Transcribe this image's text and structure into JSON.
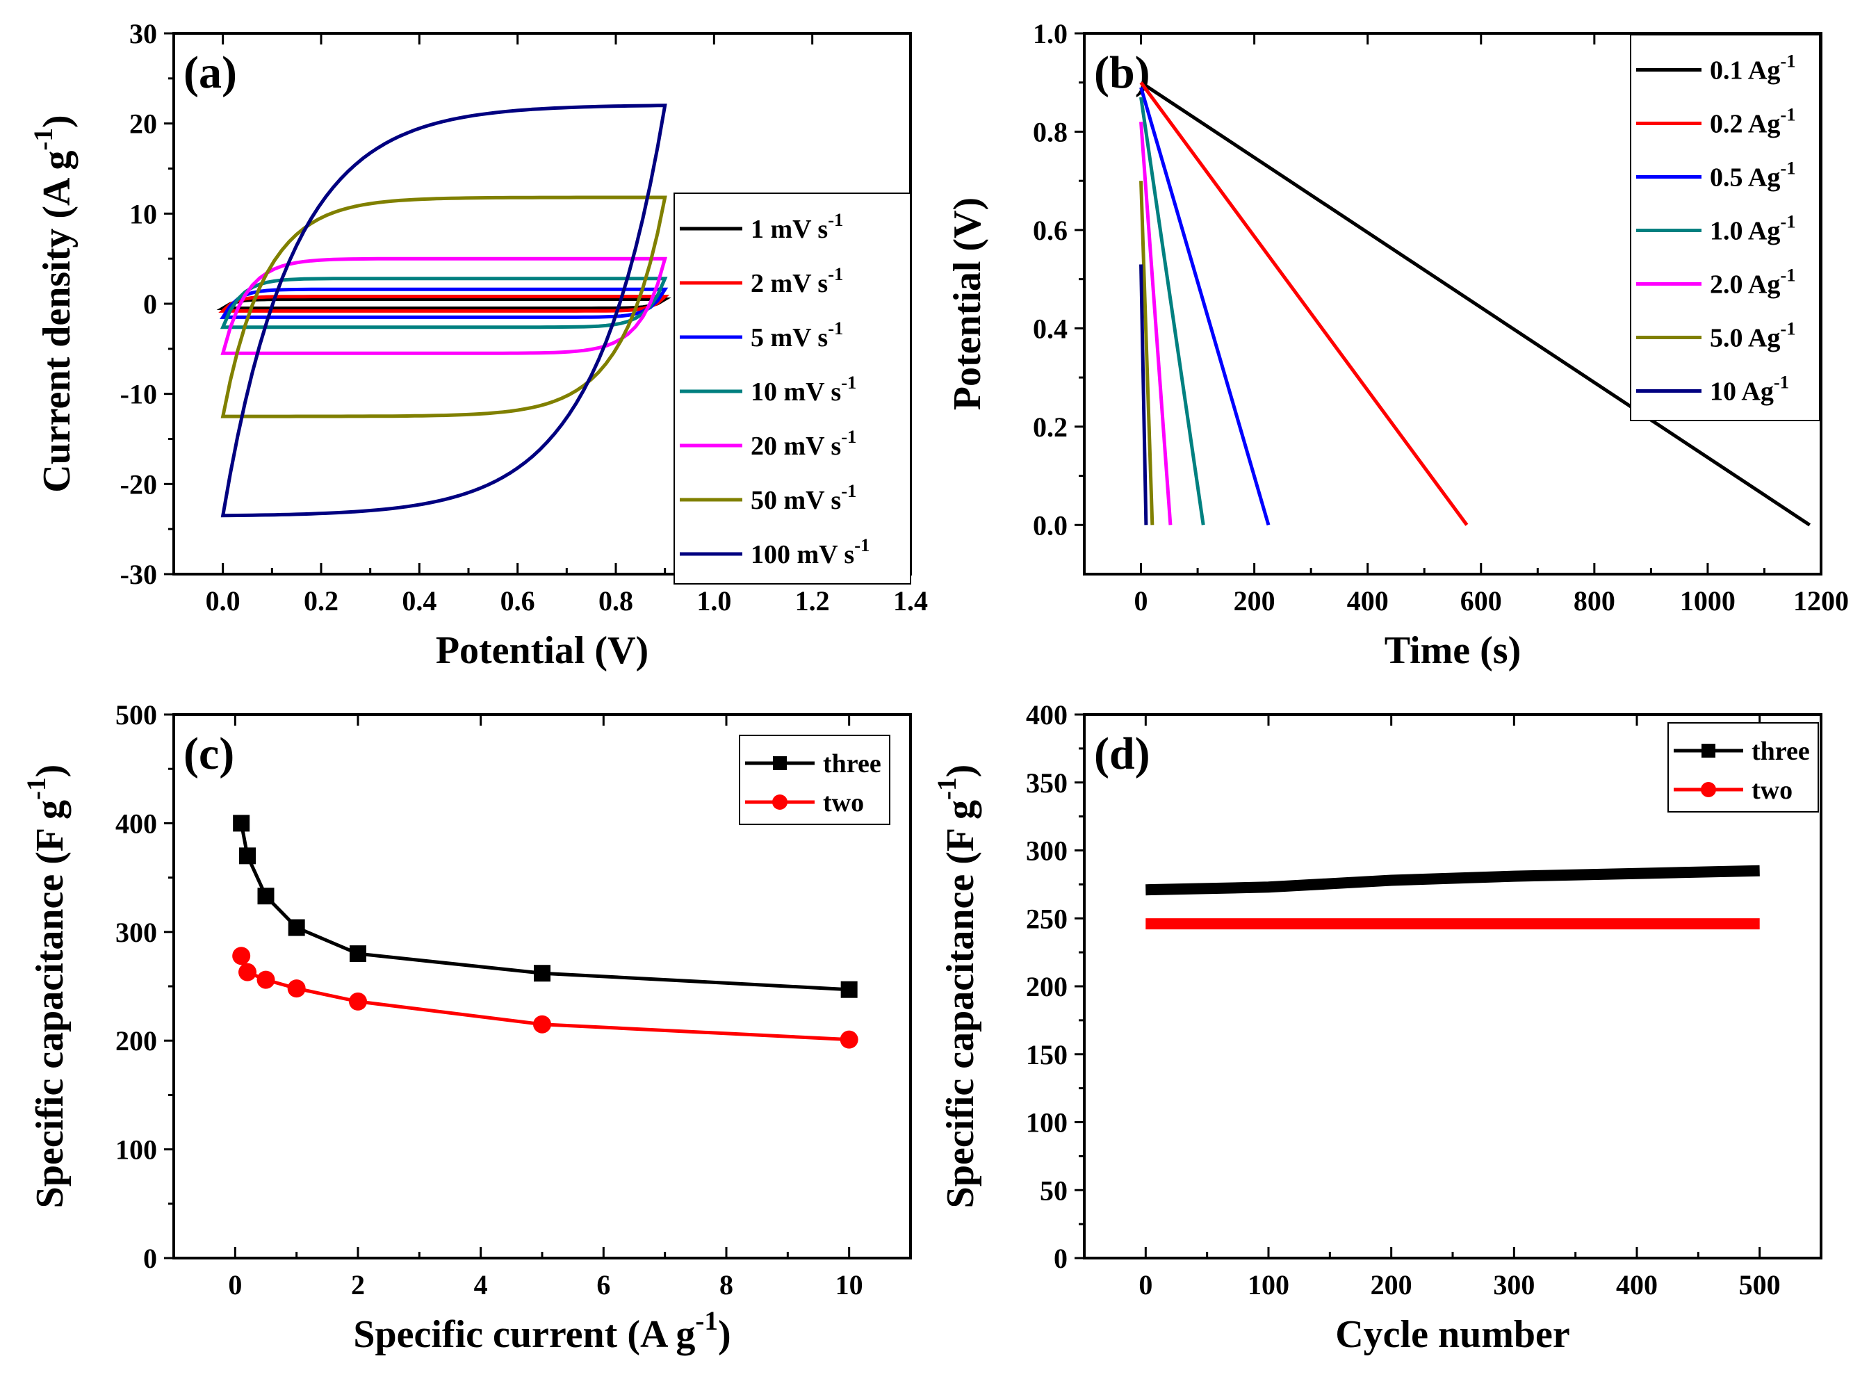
{
  "chart_data": [
    {
      "panel": "(a)",
      "type": "line",
      "xlabel": "Potential (V)",
      "ylabel": "Current density (A g",
      "ylabel_sup": "-1",
      "ylabel_close": ")",
      "xlim": [
        -0.1,
        1.4
      ],
      "ylim": [
        -30,
        30
      ],
      "xticks": [
        "0.0",
        "0.2",
        "0.4",
        "0.6",
        "0.8",
        "1.0",
        "1.2",
        "1.4"
      ],
      "yticks": [
        "-30",
        "-20",
        "-10",
        "0",
        "10",
        "20",
        "30"
      ],
      "legend_position": "right",
      "series": [
        {
          "name": "1 mV s",
          "sup": "-1",
          "color": "#000000",
          "upper": 0.5,
          "lower": -0.5
        },
        {
          "name": "2  mV s",
          "sup": "-1",
          "color": "#ff0000",
          "upper": 0.8,
          "lower": -0.8
        },
        {
          "name": "5  mV s",
          "sup": "-1",
          "color": "#0000ff",
          "upper": 1.6,
          "lower": -1.5
        },
        {
          "name": "10  mV s",
          "sup": "-1",
          "color": "#008080",
          "upper": 2.8,
          "lower": -2.6
        },
        {
          "name": "20  mV s",
          "sup": "-1",
          "color": "#ff00ff",
          "upper": 5.0,
          "lower": -5.5
        },
        {
          "name": "50  mV s",
          "sup": "-1",
          "color": "#808000",
          "upper": 11.8,
          "lower": -12.5
        },
        {
          "name": "100  mV s",
          "sup": "-1",
          "color": "#000080",
          "upper": 22.0,
          "lower": -23.5
        }
      ]
    },
    {
      "panel": "(b)",
      "type": "line",
      "xlabel": "Time (s)",
      "ylabel": "Potential (V)",
      "xlim": [
        -100,
        1200
      ],
      "ylim": [
        -0.1,
        1.0
      ],
      "xticks": [
        "0",
        "200",
        "400",
        "600",
        "800",
        "1000",
        "1200"
      ],
      "yticks": [
        "0.0",
        "0.2",
        "0.4",
        "0.6",
        "0.8",
        "1.0"
      ],
      "legend_position": "top-right",
      "series": [
        {
          "name": "0.1 Ag",
          "sup": "-1",
          "color": "#000000",
          "x": [
            0,
            1180
          ],
          "y": [
            0.9,
            0.0
          ]
        },
        {
          "name": "0.2 Ag",
          "sup": "-1",
          "color": "#ff0000",
          "x": [
            0,
            575
          ],
          "y": [
            0.9,
            0.0
          ]
        },
        {
          "name": "0.5 Ag",
          "sup": "-1",
          "color": "#0000ff",
          "x": [
            0,
            225
          ],
          "y": [
            0.89,
            0.0
          ]
        },
        {
          "name": "1.0 Ag",
          "sup": "-1",
          "color": "#008080",
          "x": [
            0,
            110
          ],
          "y": [
            0.87,
            0.0
          ]
        },
        {
          "name": "2.0 Ag",
          "sup": "-1",
          "color": "#ff00ff",
          "x": [
            0,
            52
          ],
          "y": [
            0.82,
            0.0
          ]
        },
        {
          "name": "5.0 Ag",
          "sup": "-1",
          "color": "#808000",
          "x": [
            0,
            20
          ],
          "y": [
            0.7,
            0.0
          ]
        },
        {
          "name": "10 Ag",
          "sup": "-1",
          "color": "#000080",
          "x": [
            0,
            9
          ],
          "y": [
            0.53,
            0.0
          ]
        }
      ]
    },
    {
      "panel": "(c)",
      "type": "line",
      "xlabel": "Specific current (A g",
      "xlabel_sup": "-1",
      "xlabel_close": ")",
      "ylabel": "Specific capacitance (F g",
      "ylabel_sup": "-1",
      "ylabel_close": ")",
      "xlim": [
        -1,
        11
      ],
      "ylim": [
        0,
        500
      ],
      "xticks": [
        "0",
        "2",
        "4",
        "6",
        "8",
        "10"
      ],
      "yticks": [
        "0",
        "100",
        "200",
        "300",
        "400",
        "500"
      ],
      "legend_position": "top-right",
      "series": [
        {
          "name": "three",
          "color": "#000000",
          "marker": "square",
          "x": [
            0.1,
            0.2,
            0.5,
            1,
            2,
            5,
            10
          ],
          "y": [
            400,
            370,
            333,
            304,
            280,
            262,
            247
          ]
        },
        {
          "name": "two",
          "color": "#ff0000",
          "marker": "circle",
          "x": [
            0.1,
            0.2,
            0.5,
            1,
            2,
            5,
            10
          ],
          "y": [
            278,
            263,
            256,
            248,
            236,
            215,
            201
          ]
        }
      ]
    },
    {
      "panel": "(d)",
      "type": "line",
      "xlabel": "Cycle number",
      "ylabel": "Specific capacitance (F g",
      "ylabel_sup": "-1",
      "ylabel_close": ")",
      "xlim": [
        -50,
        550
      ],
      "ylim": [
        0,
        400
      ],
      "xticks": [
        "0",
        "100",
        "200",
        "300",
        "400",
        "500"
      ],
      "yticks": [
        "0",
        "50",
        "100",
        "150",
        "200",
        "250",
        "300",
        "350",
        "400"
      ],
      "legend_position": "top-right",
      "series": [
        {
          "name": "three",
          "color": "#000000",
          "marker": "square",
          "x": [
            0,
            100,
            200,
            300,
            400,
            500
          ],
          "y": [
            271,
            273,
            278,
            281,
            283,
            285
          ]
        },
        {
          "name": "two",
          "color": "#ff0000",
          "marker": "circle",
          "x": [
            0,
            100,
            200,
            300,
            400,
            500
          ],
          "y": [
            246,
            246,
            246,
            246,
            246,
            246
          ]
        }
      ]
    }
  ]
}
